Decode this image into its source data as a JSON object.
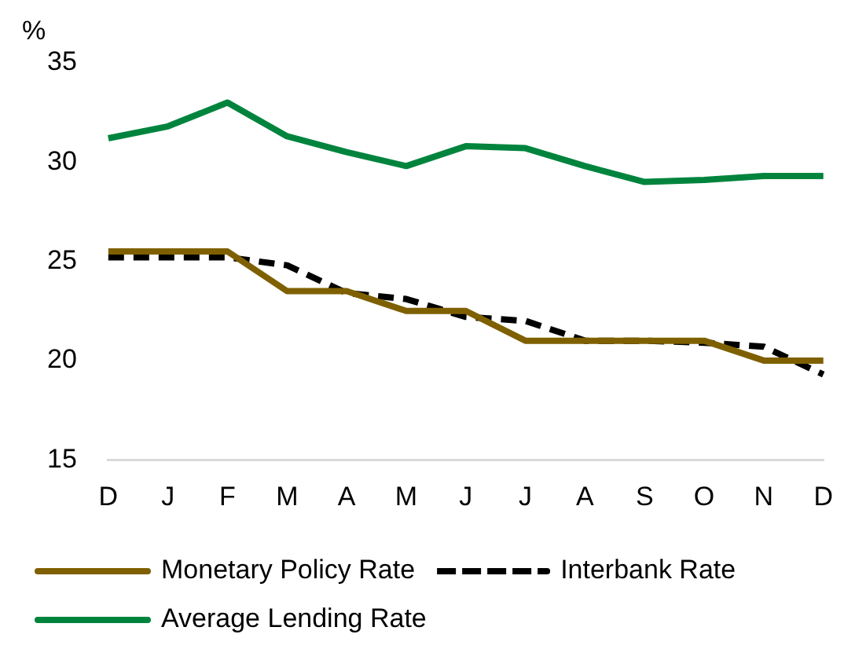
{
  "chart_data": {
    "type": "line",
    "ylabel": "%",
    "categories": [
      "D",
      "J",
      "F",
      "M",
      "A",
      "M",
      "J",
      "J",
      "A",
      "S",
      "O",
      "N",
      "D"
    ],
    "series": [
      {
        "name": "Monetary Policy Rate",
        "color": "#7f6000",
        "values": [
          25.5,
          25.5,
          25.5,
          23.5,
          23.5,
          22.5,
          22.5,
          21.0,
          21.0,
          21.0,
          21.0,
          20.0,
          20.0
        ]
      },
      {
        "name": "Interbank Rate",
        "color": "#000000",
        "line_style": "dashed",
        "values": [
          25.2,
          25.2,
          25.2,
          24.8,
          23.4,
          23.1,
          22.2,
          22.0,
          21.0,
          21.0,
          20.9,
          20.7,
          19.3
        ]
      },
      {
        "name": "Average Lending Rate",
        "color": "#00843d",
        "values": [
          31.2,
          31.8,
          33.0,
          31.3,
          30.5,
          29.8,
          30.8,
          30.7,
          29.8,
          29.0,
          29.1,
          29.3,
          29.3
        ]
      }
    ],
    "ylim": [
      15,
      35
    ],
    "yticks": [
      15,
      20,
      25,
      30,
      35
    ],
    "grid": false,
    "legend": "bottom",
    "line_style": "solid",
    "marker": "none"
  }
}
